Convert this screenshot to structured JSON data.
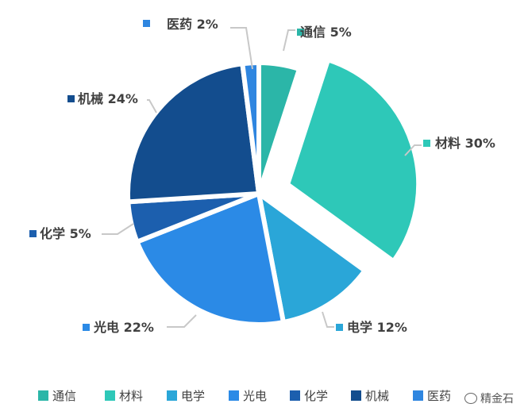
{
  "chart_data": {
    "type": "pie",
    "title": "",
    "categories": [
      "通信",
      "材料",
      "电学",
      "光电",
      "化学",
      "机械",
      "医药"
    ],
    "values": [
      5,
      30,
      12,
      22,
      5,
      24,
      2
    ],
    "labels": [
      "通信 5%",
      "材料 30%",
      "电学 12%",
      "光电 22%",
      "化学 5%",
      "机械 24%",
      "医药 2%"
    ],
    "colors": [
      "#2bb6a8",
      "#2ec8b8",
      "#2aa6d8",
      "#2b8ae6",
      "#1c5fae",
      "#134d8e",
      "#2f86e0"
    ],
    "exploded": [
      "材料"
    ],
    "legend_position": "bottom"
  },
  "watermark": {
    "text": "精金石"
  }
}
